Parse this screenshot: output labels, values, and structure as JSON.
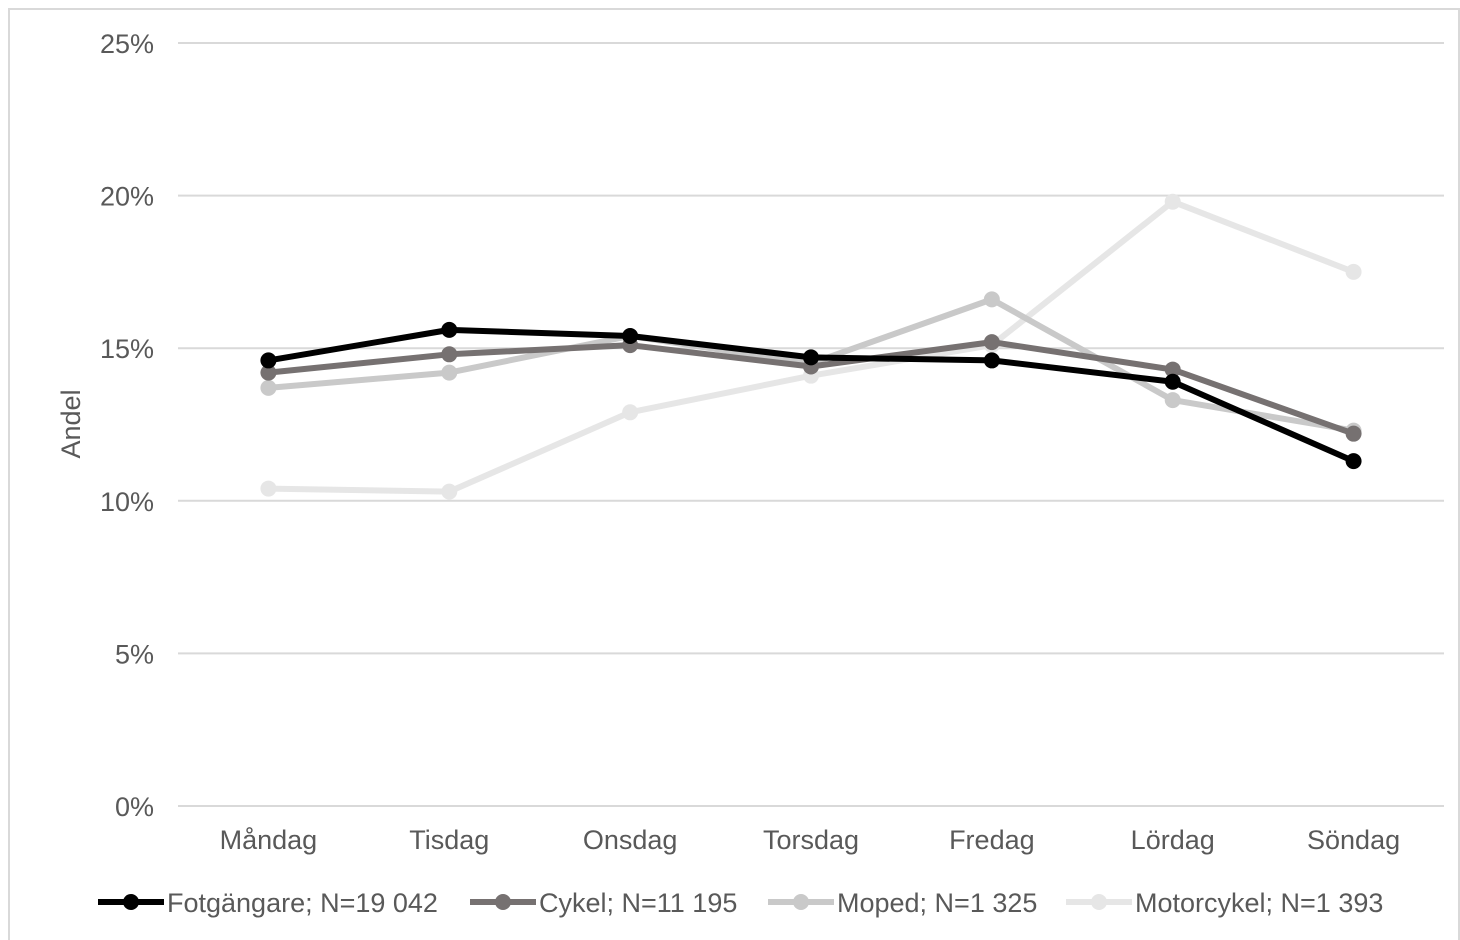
{
  "chart_data": {
    "type": "line",
    "title": "",
    "xlabel": "",
    "ylabel": "Andel",
    "ylim": [
      0,
      25
    ],
    "yticks": [
      0,
      5,
      10,
      15,
      20,
      25
    ],
    "ytick_labels": [
      "0%",
      "5%",
      "10%",
      "15%",
      "20%",
      "25%"
    ],
    "categories": [
      "Måndag",
      "Tisdag",
      "Onsdag",
      "Torsdag",
      "Fredag",
      "Lördag",
      "Söndag"
    ],
    "grid": true,
    "legend_position": "bottom",
    "series": [
      {
        "name": "Fotgängare; N=19 042",
        "color": "#000000",
        "values": [
          14.6,
          15.6,
          15.4,
          14.7,
          14.6,
          13.9,
          11.3
        ]
      },
      {
        "name": "Cykel; N=11 195",
        "color": "#767171",
        "values": [
          14.2,
          14.8,
          15.1,
          14.4,
          15.2,
          14.3,
          12.2
        ]
      },
      {
        "name": "Moped; N=1 325",
        "color": "#c9c9c9",
        "values": [
          13.7,
          14.2,
          15.4,
          14.5,
          16.6,
          13.3,
          12.3
        ]
      },
      {
        "name": "Motorcykel; N=1 393",
        "color": "#e6e6e6",
        "values": [
          10.4,
          10.3,
          12.9,
          14.1,
          15.1,
          19.8,
          17.5
        ]
      }
    ]
  }
}
